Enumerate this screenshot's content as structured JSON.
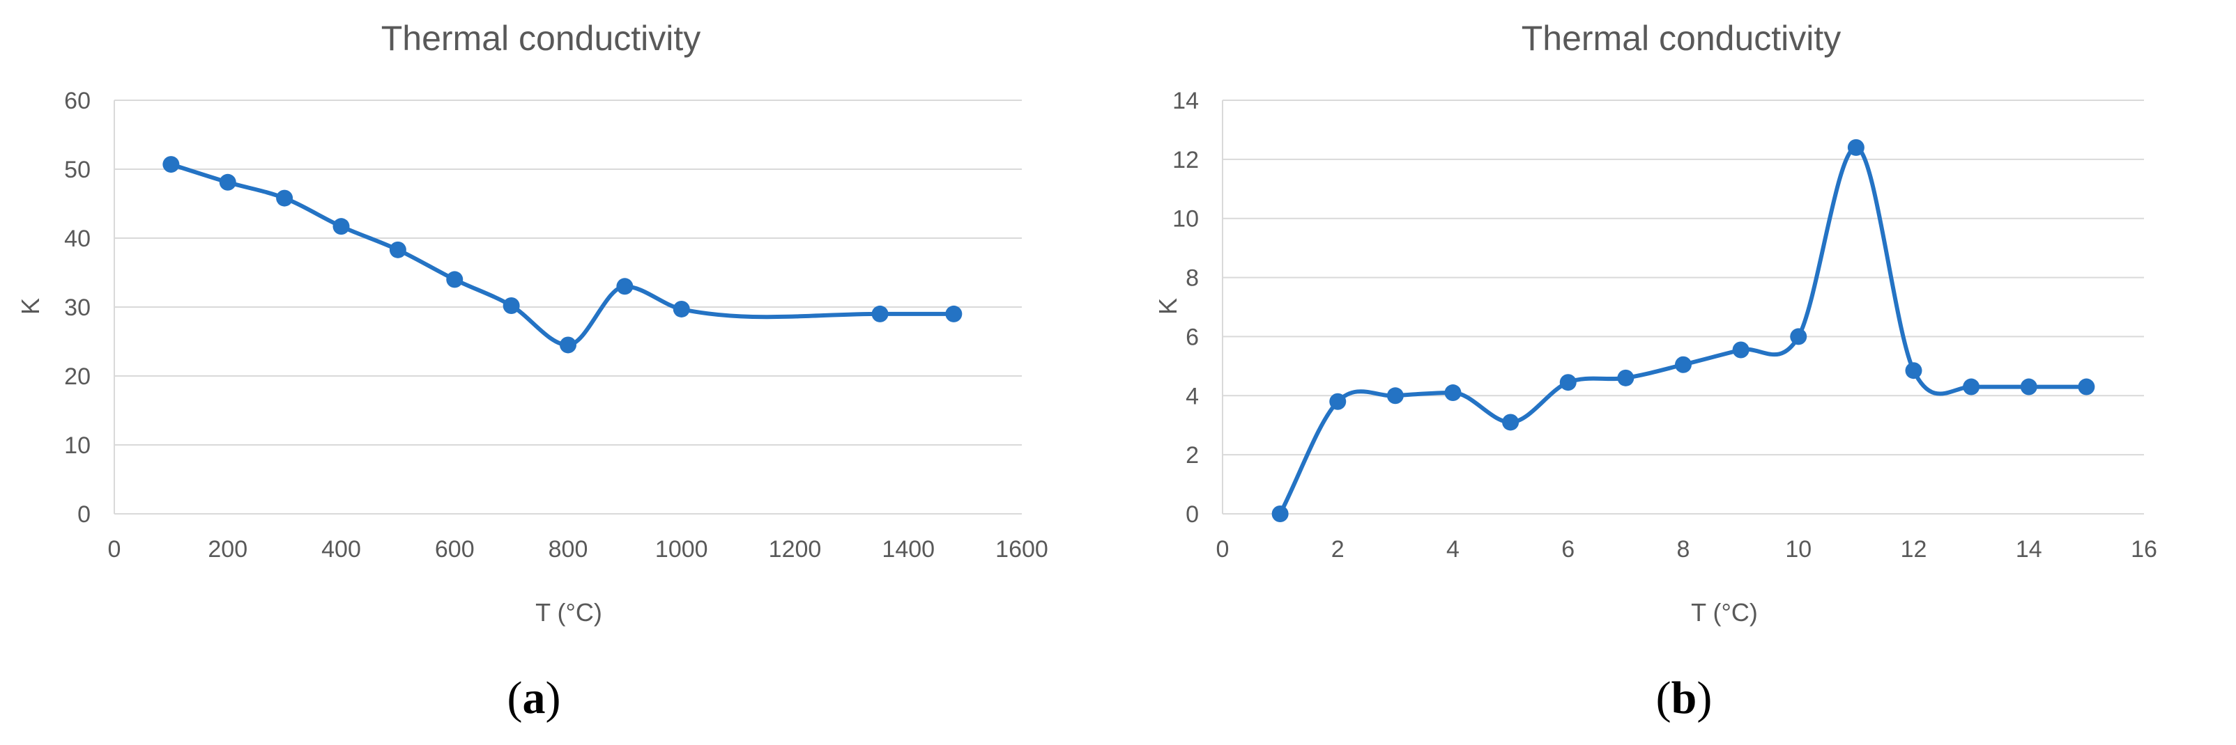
{
  "colors": {
    "series": "#2473c4",
    "grid": "#d9d9d9",
    "text": "#595959"
  },
  "chart_data": [
    {
      "id": "a",
      "type": "line",
      "title": "Thermal conductivity",
      "xlabel": "T (°C)",
      "ylabel": "K",
      "panel_label": "a",
      "xlim": [
        0,
        1600
      ],
      "ylim": [
        0,
        60
      ],
      "xticks": [
        0,
        200,
        400,
        600,
        800,
        1000,
        1200,
        1400,
        1600
      ],
      "yticks": [
        0,
        10,
        20,
        30,
        40,
        50,
        60
      ],
      "grid": true,
      "smooth": true,
      "series": [
        {
          "x": [
            100,
            200,
            300,
            400,
            500,
            600,
            700,
            800,
            900,
            1000,
            1350,
            1480
          ],
          "y": [
            50.7,
            48.1,
            45.8,
            41.7,
            38.3,
            34.0,
            30.2,
            24.5,
            33.0,
            29.7,
            29.0,
            29.0
          ]
        }
      ]
    },
    {
      "id": "b",
      "type": "line",
      "title": "Thermal conductivity",
      "xlabel": "T (°C)",
      "ylabel": "K",
      "panel_label": "b",
      "xlim": [
        0,
        16
      ],
      "ylim": [
        0,
        14
      ],
      "xticks": [
        0,
        2,
        4,
        6,
        8,
        10,
        12,
        14,
        16
      ],
      "yticks": [
        0,
        2,
        4,
        6,
        8,
        10,
        12,
        14
      ],
      "grid": true,
      "smooth": true,
      "series": [
        {
          "x": [
            1,
            2,
            3,
            4,
            5,
            6,
            7,
            8,
            9,
            10,
            11,
            12,
            13,
            14,
            15
          ],
          "y": [
            0.0,
            3.8,
            4.0,
            4.1,
            3.1,
            4.45,
            4.6,
            5.05,
            5.55,
            6.0,
            12.4,
            4.85,
            4.3,
            4.3,
            4.3
          ]
        }
      ]
    }
  ]
}
